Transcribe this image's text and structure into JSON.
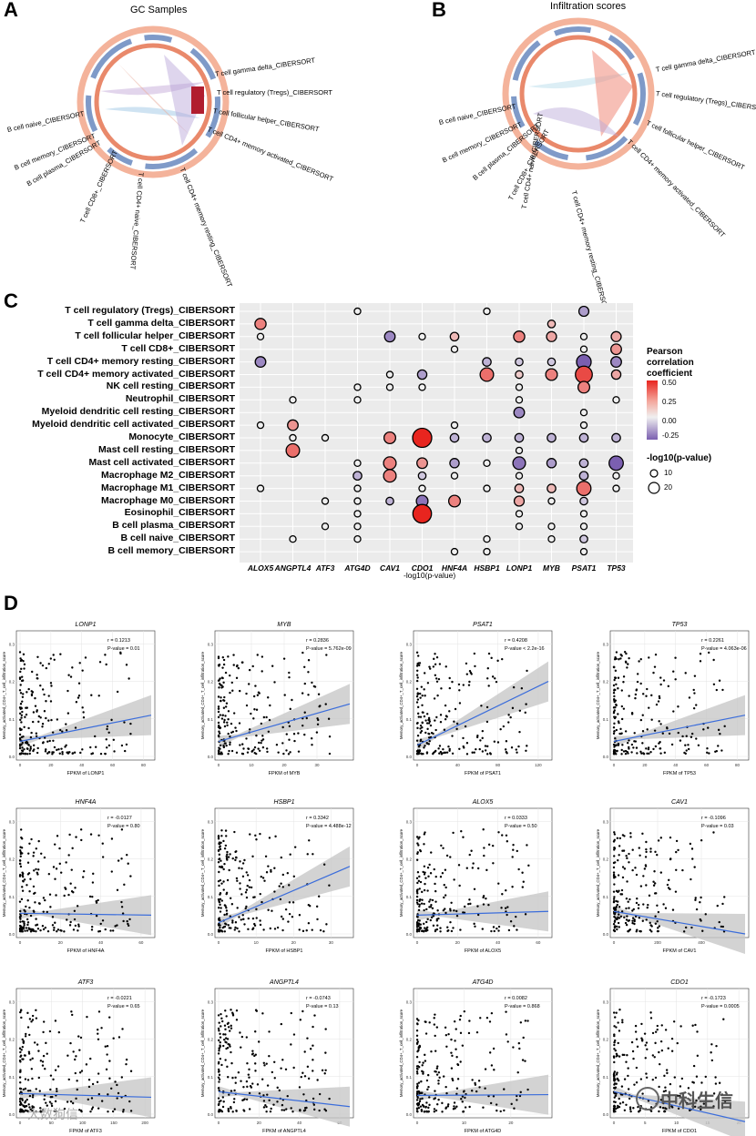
{
  "panels": {
    "A": {
      "letter": "A",
      "title": "GC Samples"
    },
    "B": {
      "letter": "B",
      "title": "Infiltration scores"
    },
    "C": {
      "letter": "C"
    },
    "D": {
      "letter": "D"
    }
  },
  "chordA": {
    "labels": [
      "T cell gamma delta_CIBERSORT",
      "T cell regulatory (Tregs)_CIBERSORT",
      "T cell follicular helper_CIBERSORT",
      "T cell CD4+ memory activated_CIBERSORT",
      "T cell CD4+ memory resting_CIBERSORT",
      "T cell CD4+ naive_CIBERSORT",
      "T cell CD8+_CIBERSORT",
      "B cell plasma_CIBERSORT",
      "B cell memory_CIBERSORT",
      "B cell naive_CIBERSORT"
    ]
  },
  "chordB": {
    "labels": [
      "T cell gamma delta_CIBERSORT",
      "T cell regulatory (Tregs)_CIBERSORT",
      "T cell follicular helper_CIBERSORT",
      "T cell CD4+ memory activated_CIBERSORT",
      "T cell CD4+ memory resting_CIBERSORT",
      "T cell CD4+ naive_CIBERSORT",
      "T cell CD8+_CIBERSORT",
      "B cell plasma_CIBERSORT",
      "B cell memory_CIBERSORT",
      "B cell naive_CIBERSORT"
    ]
  },
  "bubble": {
    "xlabel": "-log10(p-value)",
    "genes": [
      "ALOX5",
      "ANGPTL4",
      "ATF3",
      "ATG4D",
      "CAV1",
      "CDO1",
      "HNF4A",
      "HSBP1",
      "LONP1",
      "MYB",
      "PSAT1",
      "TP53"
    ],
    "cells": [
      "T cell regulatory (Tregs)_CIBERSORT",
      "T cell gamma delta_CIBERSORT",
      "T cell follicular helper_CIBERSORT",
      "T cell CD8+_CIBERSORT",
      "T cell CD4+ memory resting_CIBERSORT",
      "T cell CD4+ memory activated_CIBERSORT",
      "NK cell resting_CIBERSORT",
      "Neutrophil_CIBERSORT",
      "Myeloid dendritic cell resting_CIBERSORT",
      "Myeloid dendritic cell activated_CIBERSORT",
      "Monocyte_CIBERSORT",
      "Mast cell resting_CIBERSORT",
      "Mast cell activated_CIBERSORT",
      "Macrophage M2_CIBERSORT",
      "Macrophage M1_CIBERSORT",
      "Macrophage M0_CIBERSORT",
      "Eosinophil_CIBERSORT",
      "B cell plasma_CIBERSORT",
      "B cell naive_CIBERSORT",
      "B cell memory_CIBERSORT"
    ],
    "legend_color_title": "Pearson correlation coefficient",
    "legend_color_ticks": [
      "0.50",
      "0.25",
      "0.00",
      "-0.25"
    ],
    "legend_size_title": "-log10(p-value)",
    "legend_size_ticks": [
      "10",
      "20"
    ],
    "points": [
      [
        0,
        3,
        0.0,
        1
      ],
      [
        0,
        7,
        0.0,
        1
      ],
      [
        0,
        10,
        -0.2,
        5
      ],
      [
        1,
        0,
        0.3,
        7
      ],
      [
        1,
        9,
        0.15,
        2
      ],
      [
        2,
        0,
        0.0,
        1
      ],
      [
        2,
        4,
        -0.25,
        6
      ],
      [
        2,
        5,
        0.0,
        1
      ],
      [
        2,
        6,
        0.15,
        3
      ],
      [
        2,
        8,
        0.3,
        7
      ],
      [
        2,
        9,
        0.2,
        5
      ],
      [
        2,
        10,
        0.0,
        1
      ],
      [
        2,
        11,
        0.2,
        5
      ],
      [
        3,
        6,
        0.0,
        1
      ],
      [
        3,
        10,
        0.0,
        1
      ],
      [
        3,
        11,
        0.25,
        6
      ],
      [
        4,
        0,
        -0.25,
        6
      ],
      [
        4,
        7,
        -0.15,
        3
      ],
      [
        4,
        8,
        -0.1,
        2
      ],
      [
        4,
        9,
        -0.1,
        2
      ],
      [
        4,
        10,
        -0.35,
        15
      ],
      [
        4,
        11,
        -0.25,
        6
      ],
      [
        5,
        4,
        0.0,
        1
      ],
      [
        5,
        5,
        -0.2,
        4
      ],
      [
        5,
        7,
        0.35,
        12
      ],
      [
        5,
        8,
        0.1,
        2
      ],
      [
        5,
        9,
        0.3,
        8
      ],
      [
        5,
        10,
        0.45,
        22
      ],
      [
        5,
        11,
        0.2,
        4
      ],
      [
        6,
        3,
        0.0,
        1
      ],
      [
        6,
        4,
        0.0,
        1
      ],
      [
        6,
        5,
        0.0,
        1
      ],
      [
        6,
        8,
        0.0,
        1
      ],
      [
        6,
        10,
        0.3,
        8
      ],
      [
        7,
        1,
        0.0,
        1
      ],
      [
        7,
        3,
        0.0,
        1
      ],
      [
        7,
        8,
        0.0,
        1
      ],
      [
        7,
        11,
        0.0,
        1
      ],
      [
        8,
        8,
        -0.25,
        6
      ],
      [
        8,
        10,
        0.0,
        1
      ],
      [
        9,
        0,
        0.0,
        1
      ],
      [
        9,
        1,
        0.25,
        6
      ],
      [
        9,
        6,
        0.0,
        1
      ],
      [
        9,
        10,
        0.0,
        1
      ],
      [
        10,
        1,
        0.0,
        1
      ],
      [
        10,
        2,
        0.0,
        1
      ],
      [
        10,
        4,
        0.3,
        8
      ],
      [
        10,
        5,
        0.55,
        30
      ],
      [
        10,
        6,
        -0.15,
        3
      ],
      [
        10,
        7,
        -0.15,
        3
      ],
      [
        10,
        8,
        -0.15,
        3
      ],
      [
        10,
        9,
        -0.15,
        3
      ],
      [
        10,
        10,
        -0.15,
        3
      ],
      [
        10,
        11,
        -0.15,
        3
      ],
      [
        11,
        1,
        0.35,
        12
      ],
      [
        11,
        8,
        0.0,
        1
      ],
      [
        12,
        3,
        0.0,
        1
      ],
      [
        12,
        4,
        0.3,
        10
      ],
      [
        12,
        5,
        0.25,
        6
      ],
      [
        12,
        6,
        -0.2,
        4
      ],
      [
        12,
        7,
        0.0,
        1
      ],
      [
        12,
        8,
        -0.3,
        10
      ],
      [
        12,
        9,
        -0.2,
        4
      ],
      [
        12,
        10,
        -0.15,
        3
      ],
      [
        12,
        11,
        -0.35,
        14
      ],
      [
        13,
        3,
        -0.15,
        3
      ],
      [
        13,
        4,
        0.3,
        10
      ],
      [
        13,
        5,
        -0.1,
        2
      ],
      [
        13,
        6,
        0.0,
        1
      ],
      [
        13,
        8,
        0.0,
        1
      ],
      [
        13,
        10,
        -0.15,
        3
      ],
      [
        13,
        11,
        0.0,
        1
      ],
      [
        14,
        0,
        0.0,
        1
      ],
      [
        14,
        3,
        0.0,
        1
      ],
      [
        14,
        5,
        0.0,
        1
      ],
      [
        14,
        7,
        0.0,
        1
      ],
      [
        14,
        8,
        0.15,
        3
      ],
      [
        14,
        9,
        0.15,
        3
      ],
      [
        14,
        10,
        0.35,
        14
      ],
      [
        14,
        11,
        0.0,
        1
      ],
      [
        15,
        2,
        0.0,
        1
      ],
      [
        15,
        3,
        0.0,
        1
      ],
      [
        15,
        4,
        -0.15,
        2
      ],
      [
        15,
        5,
        -0.3,
        8
      ],
      [
        15,
        6,
        0.3,
        8
      ],
      [
        15,
        8,
        0.2,
        5
      ],
      [
        15,
        9,
        0.0,
        1
      ],
      [
        15,
        10,
        -0.1,
        2
      ],
      [
        16,
        3,
        0.0,
        1
      ],
      [
        16,
        5,
        0.55,
        28
      ],
      [
        16,
        8,
        0.0,
        1
      ],
      [
        16,
        10,
        0.0,
        1
      ],
      [
        17,
        2,
        0.0,
        1
      ],
      [
        17,
        3,
        0.0,
        1
      ],
      [
        17,
        8,
        0.0,
        1
      ],
      [
        17,
        9,
        0.0,
        1
      ],
      [
        17,
        10,
        0.0,
        1
      ],
      [
        18,
        1,
        0.0,
        1
      ],
      [
        18,
        3,
        0.0,
        1
      ],
      [
        18,
        7,
        0.0,
        1
      ],
      [
        18,
        9,
        0.0,
        1
      ],
      [
        18,
        10,
        -0.1,
        2
      ],
      [
        19,
        6,
        0.0,
        1
      ],
      [
        19,
        7,
        0.0,
        1
      ],
      [
        19,
        10,
        0.0,
        1
      ]
    ]
  },
  "scatter": {
    "ylabel": "Memory_activated_CD4+_T_cell_infiltration_score",
    "plots": [
      {
        "gene": "LONP1",
        "title": "LONP1",
        "xlab": "FPKM of LONP1",
        "r": "r = 0.1213",
        "p": "P-value = 0.01",
        "xticks": [
          "0",
          "20",
          "40",
          "60",
          "80"
        ],
        "xmax": 85,
        "yticks": [
          "0.0",
          "0.1",
          "0.2",
          "0.3"
        ],
        "ymax": 0.33,
        "y0": 0.04,
        "y1": 0.11
      },
      {
        "gene": "MYB",
        "title": "MYB",
        "xlab": "FPKM of MYB",
        "r": "r = 0.2836",
        "p": "P-value = 5.762e-09",
        "xticks": [
          "0",
          "10",
          "20",
          "30"
        ],
        "xmax": 40,
        "yticks": [
          "0.0",
          "0.1",
          "0.2",
          "0.3"
        ],
        "ymax": 0.33,
        "y0": 0.04,
        "y1": 0.14
      },
      {
        "gene": "PSAT1",
        "title": "PSAT1",
        "xlab": "FPKM of PSAT1",
        "r": "r = 0.4208",
        "p": "P-value < 2.2e-16",
        "xticks": [
          "0",
          "40",
          "80",
          "120"
        ],
        "xmax": 130,
        "yticks": [
          "0.0",
          "0.1",
          "0.2",
          "0.3"
        ],
        "ymax": 0.33,
        "y0": 0.03,
        "y1": 0.2
      },
      {
        "gene": "TP53",
        "title": "TP53",
        "xlab": "FPKM of TP53",
        "r": "r = 0.2261",
        "p": "P-value = 4.063e-06",
        "xticks": [
          "0",
          "20",
          "40",
          "60",
          "80"
        ],
        "xmax": 85,
        "yticks": [
          "0.0",
          "0.1",
          "0.2",
          "0.3"
        ],
        "ymax": 0.33,
        "y0": 0.04,
        "y1": 0.11
      },
      {
        "gene": "HNF4A",
        "title": "HNF4A",
        "xlab": "FPKM of HNF4A",
        "r": "r = -0.0127",
        "p": "P-value = 0.80",
        "xticks": [
          "0",
          "20",
          "40",
          "60"
        ],
        "xmax": 65,
        "yticks": [
          "0.0",
          "0.1",
          "0.2",
          "0.3"
        ],
        "ymax": 0.33,
        "y0": 0.055,
        "y1": 0.05
      },
      {
        "gene": "HSBP1",
        "title": "HSBP1",
        "xlab": "FPKM of HSBP1",
        "r": "r = 0.3342",
        "p": "P-value = 4.488e-12",
        "xticks": [
          "0",
          "10",
          "20",
          "30"
        ],
        "xmax": 35,
        "yticks": [
          "0.0",
          "0.1",
          "0.2",
          "0.3"
        ],
        "ymax": 0.33,
        "y0": 0.03,
        "y1": 0.18
      },
      {
        "gene": "ALOX5",
        "title": "ALOX5",
        "xlab": "FPKM of ALOX5",
        "r": "r = 0.0333",
        "p": "P-value = 0.50",
        "xticks": [
          "0",
          "20",
          "40",
          "60"
        ],
        "xmax": 65,
        "yticks": [
          "0.0",
          "0.1",
          "0.2",
          "0.3"
        ],
        "ymax": 0.33,
        "y0": 0.05,
        "y1": 0.06
      },
      {
        "gene": "CAV1",
        "title": "CAV1",
        "xlab": "FPKM of CAV1",
        "r": "r = -0.1096",
        "p": "P-value = 0.03",
        "xticks": [
          "0",
          "200",
          "400"
        ],
        "xmax": 600,
        "yticks": [
          "0.0",
          "0.1",
          "0.2",
          "0.3"
        ],
        "ymax": 0.33,
        "y0": 0.06,
        "y1": 0.0
      },
      {
        "gene": "ATF3",
        "title": "ATF3",
        "xlab": "FPKM of ATF3",
        "r": "r = -0.0221",
        "p": "P-value = 0.65",
        "xticks": [
          "0",
          "50",
          "100",
          "150",
          "200"
        ],
        "xmax": 210,
        "yticks": [
          "0.0",
          "0.1",
          "0.2",
          "0.3"
        ],
        "ymax": 0.33,
        "y0": 0.055,
        "y1": 0.045
      },
      {
        "gene": "ANGPTL4",
        "title": "ANGPTL4",
        "xlab": "FPKM of ANGPTL4",
        "r": "r = -0.0743",
        "p": "P-value = 0.13",
        "xticks": [
          "0",
          "20",
          "40",
          "60"
        ],
        "xmax": 65,
        "yticks": [
          "0.0",
          "0.1",
          "0.2",
          "0.3"
        ],
        "ymax": 0.33,
        "y0": 0.06,
        "y1": 0.02
      },
      {
        "gene": "ATG4D",
        "title": "ATG4D",
        "xlab": "FPKM of ATG4D",
        "r": "r = 0.0082",
        "p": "P-value = 0.868",
        "xticks": [
          "0",
          "10",
          "20"
        ],
        "xmax": 28,
        "yticks": [
          "0.0",
          "0.1",
          "0.2",
          "0.3"
        ],
        "ymax": 0.33,
        "y0": 0.05,
        "y1": 0.052
      },
      {
        "gene": "CDO1",
        "title": "CDO1",
        "xlab": "FPKM of CDO1",
        "r": "r = -0.1723",
        "p": "P-value = 0.0005",
        "xticks": [
          "0",
          "5",
          "10",
          "15",
          "20"
        ],
        "xmax": 21,
        "yticks": [
          "0.0",
          "0.1",
          "0.2",
          "0.3"
        ],
        "ymax": 0.33,
        "y0": 0.06,
        "y1": -0.02
      }
    ]
  },
  "watermarks": {
    "main": "中科生信",
    "corner": "大数狗信"
  },
  "colors": {
    "high": "#e8251f",
    "mid": "#f0f0f0",
    "low": "#7b5fb0",
    "fit": "#3b6ddb",
    "band": "#c8c8c8"
  }
}
